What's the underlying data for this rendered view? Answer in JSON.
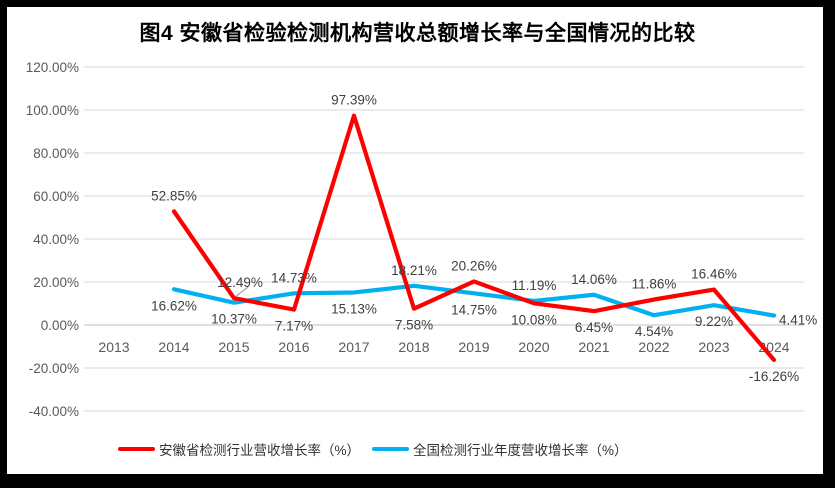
{
  "chart_data": {
    "type": "line",
    "title": "图4 安徽省检验检测机构营收总额增长率与全国情况的比较",
    "categories": [
      "2013",
      "2014",
      "2015",
      "2016",
      "2017",
      "2018",
      "2019",
      "2020",
      "2021",
      "2022",
      "2023",
      "2024"
    ],
    "series": [
      {
        "name": "安徽省检测行业营收增长率（%）",
        "color": "#FF0000",
        "values": [
          null,
          52.85,
          12.49,
          7.17,
          97.39,
          7.58,
          20.26,
          10.08,
          6.45,
          11.86,
          16.46,
          -16.26
        ],
        "labels": [
          "",
          "52.85%",
          "12.49%",
          "7.17%",
          "97.39%",
          "7.58%",
          "20.26%",
          "10.08%",
          "6.45%",
          "11.86%",
          "16.46%",
          "-16.26%"
        ],
        "label_side": [
          null,
          "above",
          "above",
          "below",
          "above",
          "below",
          "above",
          "below",
          "below",
          "above",
          "above",
          "below"
        ]
      },
      {
        "name": "全国检测行业年度营收增长率（%）",
        "color": "#00B0F0",
        "values": [
          null,
          16.62,
          10.37,
          14.73,
          15.13,
          18.21,
          14.75,
          11.19,
          14.06,
          4.54,
          9.22,
          4.41
        ],
        "labels": [
          "",
          "16.62%",
          "10.37%",
          "14.73%",
          "15.13%",
          "18.21%",
          "14.75%",
          "11.19%",
          "14.06%",
          "4.54%",
          "9.22%",
          "4.41%"
        ],
        "label_side": [
          null,
          "below",
          "below",
          "above",
          "below",
          "above",
          "below",
          "above",
          "above",
          "below",
          "below",
          "right"
        ]
      }
    ],
    "y_axis": {
      "ticks": [
        "120.00%",
        "100.00%",
        "80.00%",
        "60.00%",
        "40.00%",
        "20.00%",
        "0.00%",
        "-20.00%",
        "-40.00%"
      ],
      "min": -40,
      "max": 120,
      "step": 20
    },
    "grid": true,
    "legend_position": "bottom",
    "leader_line": {
      "series_index": 0,
      "point_index": 2
    },
    "colors": {
      "grid": "#D9D9D9",
      "axis_line": "#BFBFBF",
      "tick_text": "#595959",
      "data_label": "#404040",
      "leader": "#A6A6A6",
      "frame": "#000000",
      "background": "#FFFFFF"
    }
  }
}
